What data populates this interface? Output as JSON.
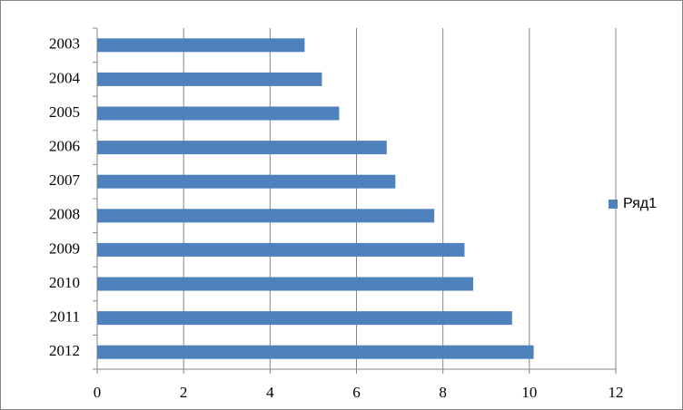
{
  "chart_data": {
    "type": "bar",
    "orientation": "horizontal",
    "categories": [
      "2003",
      "2004",
      "2005",
      "2006",
      "2007",
      "2008",
      "2009",
      "2010",
      "2011",
      "2012"
    ],
    "series": [
      {
        "name": "Ряд1",
        "color": "#4f81bd",
        "values": [
          4.8,
          5.2,
          5.6,
          6.7,
          6.9,
          7.8,
          8.5,
          8.7,
          9.6,
          10.1
        ]
      }
    ],
    "xlim": [
      0,
      12
    ],
    "xticks": [
      0,
      2,
      4,
      6,
      8,
      10,
      12
    ],
    "grid": true,
    "legend": "right"
  }
}
